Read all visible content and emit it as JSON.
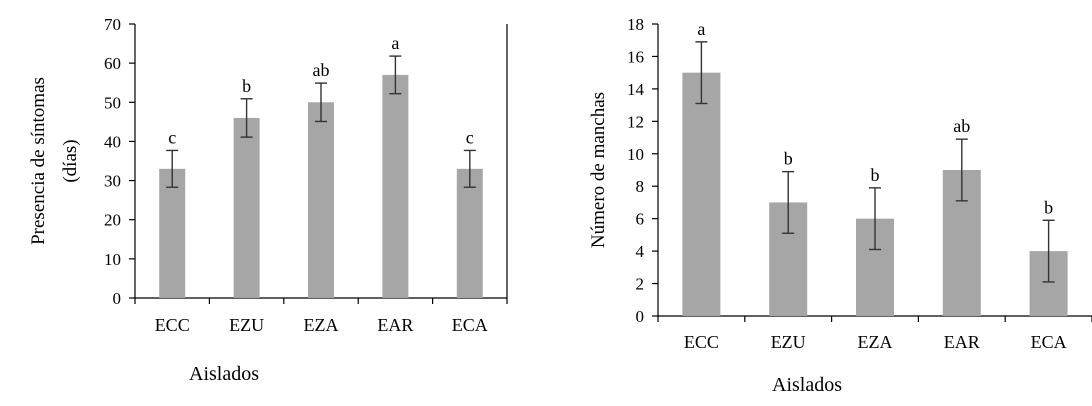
{
  "chart_data": [
    {
      "type": "bar",
      "categories": [
        "ECC",
        "EZU",
        "EZA",
        "EAR",
        "ECA"
      ],
      "values": [
        33,
        46,
        50,
        57,
        33
      ],
      "error": [
        4.7,
        4.9,
        4.9,
        4.8,
        4.7
      ],
      "significance": [
        "c",
        "b",
        "ab",
        "a",
        "c"
      ],
      "ylabel": [
        "Presencia de síntomas",
        "(días)"
      ],
      "xlabel": "Aislados",
      "ylim": [
        0,
        70
      ],
      "yticks": [
        0,
        10,
        20,
        30,
        40,
        50,
        60,
        70
      ],
      "bar_color": "#a6a6a6",
      "grid": false
    },
    {
      "type": "bar",
      "categories": [
        "ECC",
        "EZU",
        "EZA",
        "EAR",
        "ECA"
      ],
      "values": [
        15,
        7,
        6,
        9,
        4
      ],
      "error": [
        1.9,
        1.9,
        1.9,
        1.9,
        1.9
      ],
      "significance": [
        "a",
        "b",
        "b",
        "ab",
        "b"
      ],
      "ylabel": [
        "Número de manchas"
      ],
      "xlabel": "Aislados",
      "ylim": [
        0,
        18
      ],
      "yticks": [
        0,
        2,
        4,
        6,
        8,
        10,
        12,
        14,
        16,
        18
      ],
      "bar_color": "#a6a6a6",
      "grid": false
    }
  ]
}
